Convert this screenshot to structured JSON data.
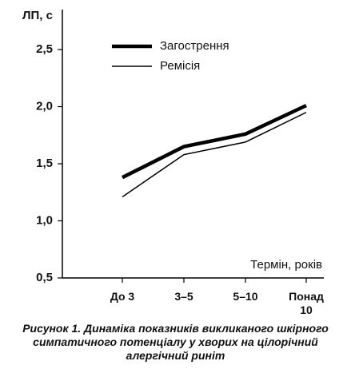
{
  "chart_data": {
    "type": "line",
    "y_label": "ЛП, с",
    "x_label": "Термін, років",
    "caption": "Рисунок 1. Динаміка показників викликаного шкірного симпатичного потенціалу у хворих на цілорічний алергічний риніт",
    "categories": [
      "До 3",
      "3–5",
      "5–10",
      "Понад 10"
    ],
    "series": [
      {
        "name": "Загострення",
        "color": "#000000",
        "values": [
          1.38,
          1.65,
          1.76,
          2.01
        ]
      },
      {
        "name": "Ремісія",
        "color": "#000000",
        "values": [
          1.21,
          1.58,
          1.69,
          1.95
        ]
      }
    ],
    "ylim": [
      0.5,
      2.85
    ],
    "yticks": [
      {
        "value": 0.5,
        "label": "0,5"
      },
      {
        "value": 1.0,
        "label": "1,0"
      },
      {
        "value": 1.5,
        "label": "1,5"
      },
      {
        "value": 2.0,
        "label": "2,0"
      },
      {
        "value": 2.5,
        "label": "2,5"
      }
    ],
    "grid": false
  }
}
